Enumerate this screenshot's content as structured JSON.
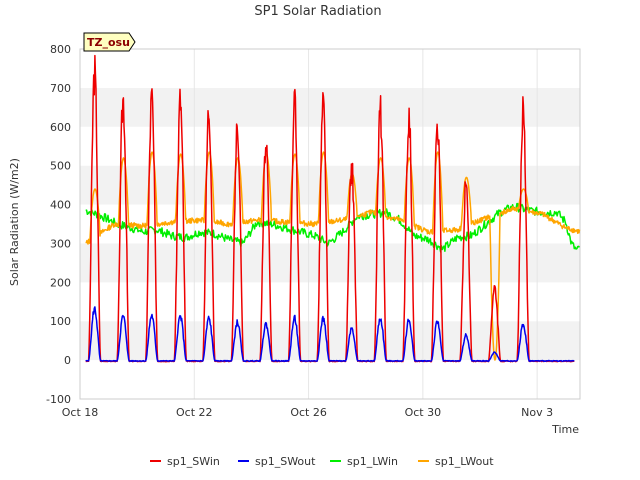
{
  "chart_data": {
    "type": "line",
    "title": "SP1 Solar Radiation",
    "xlabel": "Time",
    "ylabel": "Solar Radiation (W/m2)",
    "badge": "TZ_osu",
    "xlim": [
      0,
      17.5
    ],
    "ylim": [
      -100,
      800
    ],
    "y_ticks": [
      -100,
      0,
      100,
      200,
      300,
      400,
      500,
      600,
      700,
      800
    ],
    "x_ticks": [
      {
        "x": 0,
        "label": "Oct 18"
      },
      {
        "x": 4,
        "label": "Oct 22"
      },
      {
        "x": 8,
        "label": "Oct 26"
      },
      {
        "x": 12,
        "label": "Oct 30"
      },
      {
        "x": 16,
        "label": "Nov 3"
      }
    ],
    "grid": true,
    "legend_position": "bottom",
    "series": [
      {
        "name": "sp1_SWin",
        "color": "#ee0000",
        "daily_peaks": [
          760,
          690,
          690,
          685,
          665,
          620,
          585,
          675,
          670,
          505,
          660,
          640,
          630,
          460,
          195,
          660
        ]
      },
      {
        "name": "sp1_SWout",
        "color": "#0000ee",
        "daily_peaks": [
          135,
          115,
          118,
          115,
          110,
          100,
          95,
          110,
          110,
          85,
          110,
          105,
          100,
          65,
          20,
          95
        ]
      },
      {
        "name": "sp1_LWin",
        "color": "#00ee00",
        "points": [
          [
            0.2,
            385
          ],
          [
            0.6,
            375
          ],
          [
            0.9,
            365
          ],
          [
            1.3,
            350
          ],
          [
            1.8,
            340
          ],
          [
            2.2,
            330
          ],
          [
            2.7,
            335
          ],
          [
            3.2,
            320
          ],
          [
            3.7,
            315
          ],
          [
            4.2,
            330
          ],
          [
            4.7,
            325
          ],
          [
            5.2,
            310
          ],
          [
            5.7,
            300
          ],
          [
            6.2,
            355
          ],
          [
            6.7,
            350
          ],
          [
            7.2,
            340
          ],
          [
            7.7,
            330
          ],
          [
            8.2,
            320
          ],
          [
            8.7,
            300
          ],
          [
            9.2,
            330
          ],
          [
            9.7,
            370
          ],
          [
            10.2,
            375
          ],
          [
            10.7,
            380
          ],
          [
            11.2,
            360
          ],
          [
            11.7,
            320
          ],
          [
            12.2,
            310
          ],
          [
            12.7,
            285
          ],
          [
            13.2,
            315
          ],
          [
            13.7,
            320
          ],
          [
            14.2,
            350
          ],
          [
            14.7,
            380
          ],
          [
            15.2,
            395
          ],
          [
            15.7,
            385
          ],
          [
            16.2,
            380
          ],
          [
            16.7,
            380
          ],
          [
            17.0,
            355
          ],
          [
            17.2,
            300
          ],
          [
            17.4,
            280
          ],
          [
            17.5,
            295
          ]
        ]
      },
      {
        "name": "sp1_LWout",
        "color": "#ffa500",
        "daily_peaks": [
          440,
          520,
          535,
          530,
          535,
          520,
          530,
          530,
          535,
          480,
          520,
          520,
          535,
          470,
          0,
          440
        ],
        "baseline": [
          [
            0.2,
            300
          ],
          [
            1.2,
            350
          ],
          [
            2.2,
            345
          ],
          [
            3.2,
            355
          ],
          [
            4.2,
            360
          ],
          [
            5.2,
            350
          ],
          [
            6.2,
            360
          ],
          [
            7.2,
            355
          ],
          [
            8.2,
            350
          ],
          [
            9.2,
            360
          ],
          [
            10.2,
            380
          ],
          [
            11.2,
            360
          ],
          [
            12.2,
            330
          ],
          [
            13.2,
            335
          ],
          [
            14.2,
            365
          ],
          [
            15.2,
            390
          ],
          [
            16.2,
            375
          ],
          [
            17.0,
            340
          ],
          [
            17.5,
            330
          ]
        ]
      }
    ]
  }
}
